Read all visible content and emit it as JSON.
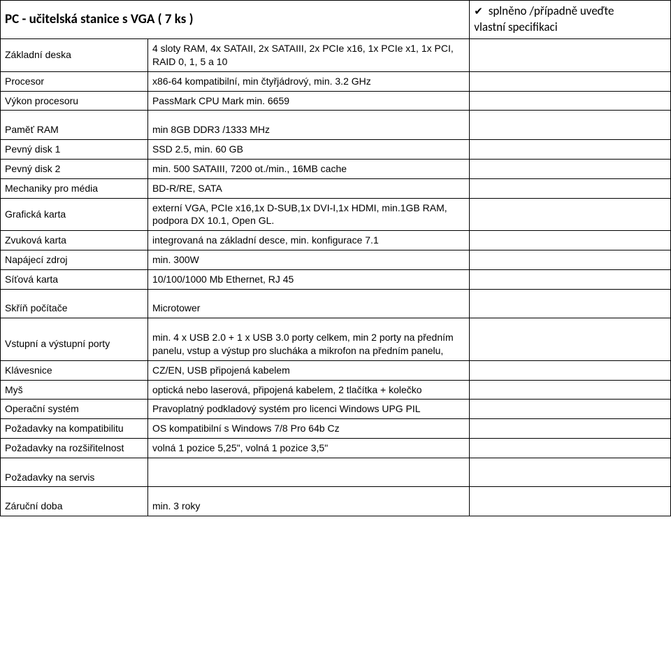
{
  "title": "PC - učitelská stanice s VGA ( 7 ks )",
  "header_check": {
    "prefix": "✔",
    "line1": " splněno /případně uveďte",
    "line2": "vlastní specifikaci"
  },
  "rows": {
    "zakladni_deska": {
      "label": "Základní deska",
      "value": "4 sloty RAM, 4x SATAII, 2x SATAIII, 2x PCIe x16, 1x PCIe x1, 1x PCI, RAID 0, 1, 5 a 10"
    },
    "procesor": {
      "label": "Procesor",
      "value": "x86-64 kompatibilní, min čtyřjádrový, min. 3.2 GHz"
    },
    "vykon_procesoru": {
      "label": "Výkon procesoru",
      "value": "PassMark CPU Mark min. 6659"
    },
    "pamet_ram": {
      "label": "Paměť RAM",
      "value": "min 8GB DDR3 /1333 MHz"
    },
    "pevny_disk1": {
      "label": "Pevný disk 1",
      "value": "SSD 2.5, min. 60 GB"
    },
    "pevny_disk2": {
      "label": "Pevný disk 2",
      "value": "min. 500 SATAIII, 7200 ot./min., 16MB cache"
    },
    "mechaniky": {
      "label": "Mechaniky pro média",
      "value": "BD-R/RE, SATA"
    },
    "graficka": {
      "label": "Grafická karta",
      "value": "externí VGA, PCIe x16,1x D-SUB,1x DVI-I,1x HDMI, min.1GB RAM, podpora DX 10.1, Open GL."
    },
    "zvukova": {
      "label": "Zvuková karta",
      "value": "integrovaná na základní desce, min. konfigurace 7.1"
    },
    "napajeci": {
      "label": "Napájecí zdroj",
      "value": "min. 300W"
    },
    "sitova": {
      "label": "Síťová karta",
      "value": "10/100/1000 Mb Ethernet, RJ 45"
    },
    "skrin": {
      "label": "Skříň počítače",
      "value": "Microtower"
    },
    "porty": {
      "label": "Vstupní a výstupní porty",
      "value": "min. 4 x USB 2.0 + 1 x USB 3.0 porty celkem, min 2 porty na předním panelu, vstup a výstup pro slucháka a mikrofon na předním panelu,"
    },
    "klavesnice": {
      "label": "Klávesnice",
      "value": "CZ/EN, USB připojená kabelem"
    },
    "mys": {
      "label": "Myš",
      "value": "optická nebo laserová, připojená kabelem, 2 tlačítka + kolečko"
    },
    "os": {
      "label": "Operační systém",
      "value": "Pravoplatný podkladový systém pro licenci Windows UPG PIL"
    },
    "kompat": {
      "label": "Požadavky na kompatibilitu",
      "value": "OS kompatibilní s Windows 7/8 Pro 64b Cz"
    },
    "rozsir": {
      "label": "Požadavky na rozšiřitelnost",
      "value": "volná 1 pozice 5,25\", volná 1 pozice 3,5\""
    },
    "servis": {
      "label": "Požadavky na servis",
      "value": ""
    },
    "zaruka": {
      "label": "Záruční doba",
      "value": "min. 3 roky"
    }
  }
}
